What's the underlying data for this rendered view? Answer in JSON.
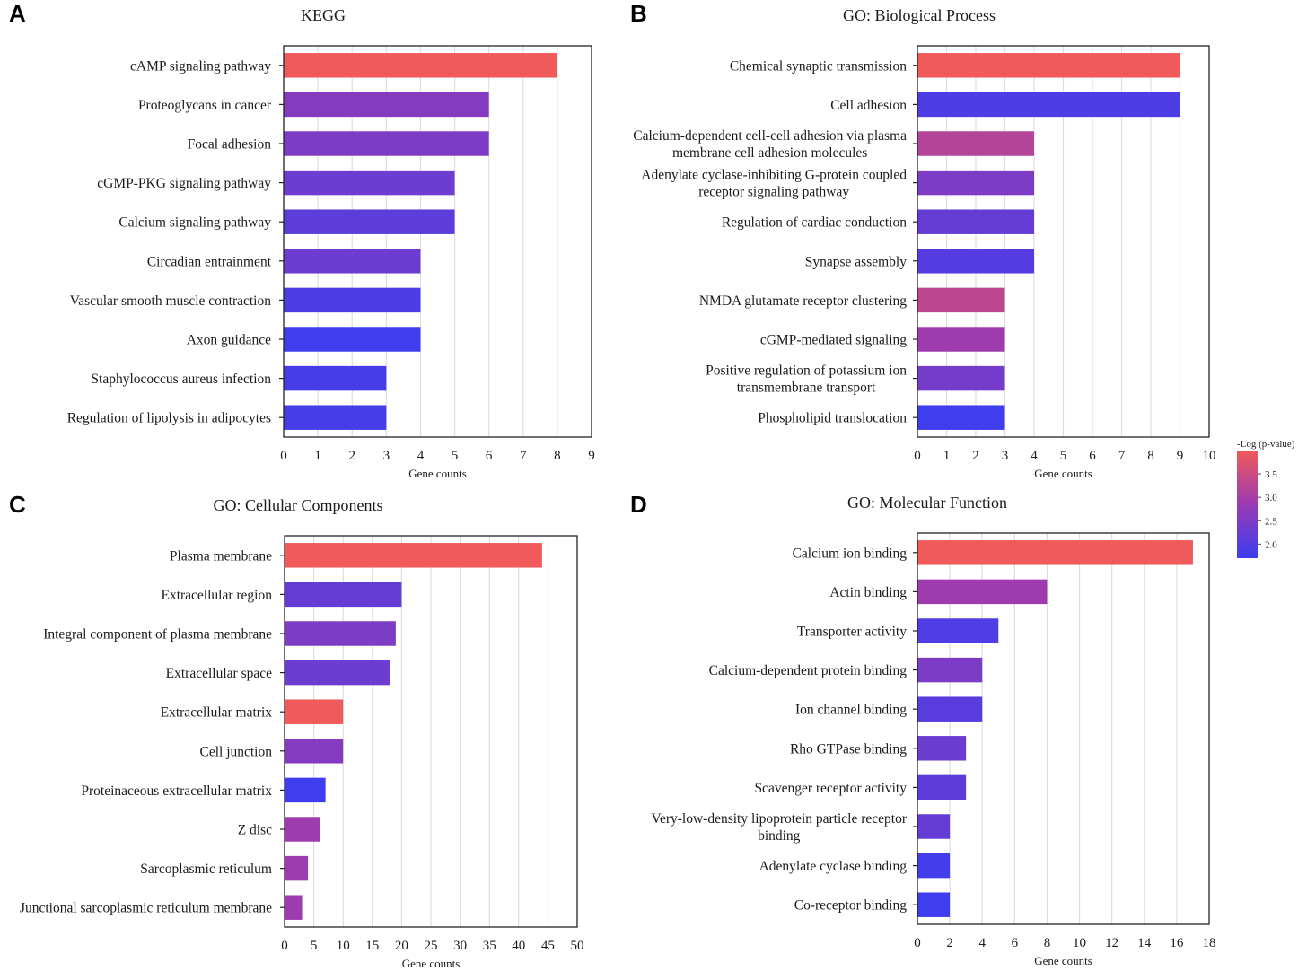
{
  "figure": {
    "color_scale": {
      "low": "#3b3df0",
      "mid": "#9a3bb3",
      "high": "#f05a5a"
    },
    "legend": {
      "title": "-Log (p-value)",
      "ticks": [
        "3.5",
        "3.0",
        "2.5",
        "2.0"
      ],
      "range": [
        1.7,
        4.0
      ]
    }
  },
  "chart_data": [
    {
      "type": "bar",
      "orientation": "horizontal",
      "panel": "A",
      "title": "KEGG",
      "xlabel": "Gene counts",
      "ylabel": "",
      "xlim": [
        0,
        9
      ],
      "xticks": [
        "0",
        "1",
        "2",
        "3",
        "4",
        "5",
        "6",
        "7",
        "8",
        "9"
      ],
      "grid": true,
      "categories": [
        [
          "cAMP signaling pathway"
        ],
        [
          "Proteoglycans in cancer"
        ],
        [
          "Focal adhesion"
        ],
        [
          "cGMP-PKG signaling pathway"
        ],
        [
          "Calcium signaling pathway"
        ],
        [
          "Circadian entrainment"
        ],
        [
          "Vascular smooth muscle contraction"
        ],
        [
          "Axon guidance"
        ],
        [
          "Staphylococcus aureus infection"
        ],
        [
          "Regulation of lipolysis in adipocytes"
        ]
      ],
      "values": [
        8,
        6,
        6,
        5,
        5,
        4,
        4,
        4,
        3,
        3
      ],
      "color_values": [
        4.0,
        2.6,
        2.5,
        2.3,
        2.1,
        2.3,
        1.9,
        1.75,
        1.85,
        1.85
      ]
    },
    {
      "type": "bar",
      "orientation": "horizontal",
      "panel": "B",
      "title": "GO: Biological Process",
      "xlabel": "Gene counts",
      "ylabel": "",
      "xlim": [
        0,
        10
      ],
      "xticks": [
        "0",
        "1",
        "2",
        "3",
        "4",
        "5",
        "6",
        "7",
        "8",
        "9",
        "10"
      ],
      "grid": true,
      "categories": [
        [
          "Chemical synaptic transmission"
        ],
        [
          "Cell adhesion"
        ],
        [
          "Calcium-dependent cell-cell adhesion via plasma",
          "membrane cell adhesion molecules"
        ],
        [
          "Adenylate cyclase-inhibiting G-protein coupled",
          "receptor signaling pathway"
        ],
        [
          "Regulation of cardiac conduction"
        ],
        [
          "Synapse assembly"
        ],
        [
          "NMDA glutamate receptor clustering"
        ],
        [
          "cGMP-mediated signaling"
        ],
        [
          "Positive regulation of potassium ion",
          "transmembrane transport"
        ],
        [
          "Phospholipid translocation"
        ]
      ],
      "values": [
        9,
        9,
        4,
        4,
        4,
        4,
        3,
        3,
        3,
        3
      ],
      "color_values": [
        4.0,
        1.9,
        3.2,
        2.5,
        2.2,
        2.0,
        3.3,
        2.9,
        2.4,
        1.75
      ]
    },
    {
      "type": "bar",
      "orientation": "horizontal",
      "panel": "C",
      "title": "GO: Cellular Components",
      "xlabel": "Gene counts",
      "ylabel": "",
      "xlim": [
        0,
        50
      ],
      "xticks": [
        "0",
        "5",
        "10",
        "15",
        "20",
        "25",
        "30",
        "35",
        "40",
        "45",
        "50"
      ],
      "grid": true,
      "categories": [
        [
          "Plasma membrane"
        ],
        [
          "Extracellular region"
        ],
        [
          "Integral component of plasma membrane"
        ],
        [
          "Extracellular space"
        ],
        [
          "Extracellular matrix"
        ],
        [
          "Cell junction"
        ],
        [
          "Proteinaceous extracellular matrix"
        ],
        [
          "Z disc"
        ],
        [
          "Sarcoplasmic reticulum"
        ],
        [
          "Junctional sarcoplasmic reticulum membrane"
        ]
      ],
      "values": [
        44,
        20,
        19,
        18,
        10,
        10,
        7,
        6,
        4,
        3
      ],
      "color_values": [
        4.0,
        2.2,
        2.5,
        2.3,
        4.0,
        2.6,
        1.75,
        2.9,
        2.9,
        2.9
      ]
    },
    {
      "type": "bar",
      "orientation": "horizontal",
      "panel": "D",
      "title": "GO: Molecular Function",
      "xlabel": "Gene counts",
      "ylabel": "",
      "xlim": [
        0,
        18
      ],
      "xticks": [
        "0",
        "2",
        "4",
        "6",
        "8",
        "10",
        "12",
        "14",
        "16",
        "18"
      ],
      "grid": true,
      "categories": [
        [
          "Calcium ion binding"
        ],
        [
          "Actin binding"
        ],
        [
          "Transporter activity"
        ],
        [
          "Calcium-dependent protein binding"
        ],
        [
          "Ion channel binding"
        ],
        [
          "Rho GTPase binding"
        ],
        [
          "Scavenger receptor activity"
        ],
        [
          "Very-low-density lipoprotein particle receptor",
          "binding"
        ],
        [
          "Adenylate cyclase binding"
        ],
        [
          "Co-receptor binding"
        ]
      ],
      "values": [
        17,
        8,
        5,
        4,
        4,
        3,
        3,
        2,
        2,
        2
      ],
      "color_values": [
        4.0,
        2.9,
        1.95,
        2.5,
        2.05,
        2.3,
        2.1,
        2.2,
        1.8,
        1.75
      ]
    }
  ]
}
